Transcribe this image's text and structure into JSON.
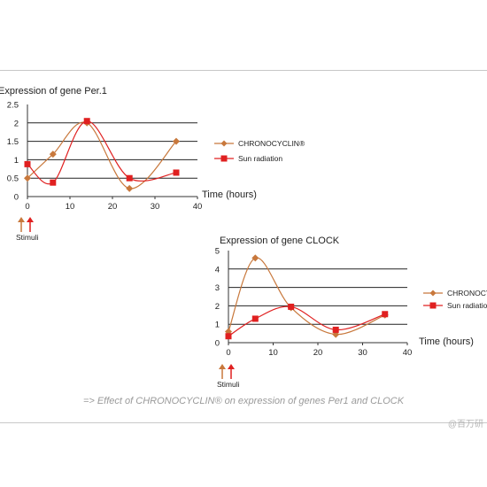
{
  "colors": {
    "chronocyclin": "#c8783c",
    "sun": "#e02020",
    "stimuli_arrow_1": "#c8783c",
    "stimuli_arrow_2": "#e02020",
    "grid": "#222222"
  },
  "caption": "=> Effect of CHRONOCYCLIN® on expression of genes Per1 and CLOCK",
  "watermark": "@百万研",
  "chart_data": [
    {
      "type": "line",
      "title": "Expression of gene Per.1",
      "xlabel": "Time (hours)",
      "ylabel": "",
      "xlim": [
        0,
        40
      ],
      "ylim": [
        0,
        2.5
      ],
      "xticks": [
        0,
        10,
        20,
        30,
        40
      ],
      "yticks": [
        0,
        0.5,
        1,
        1.5,
        2,
        2.5
      ],
      "grid": "horizontal",
      "legend": "right",
      "annotation": "Stimuli",
      "series": [
        {
          "name": "CHRONOCYCLIN®",
          "marker": "diamond",
          "x": [
            0,
            6,
            14,
            24,
            35
          ],
          "y": [
            0.5,
            1.15,
            2.0,
            0.22,
            1.5
          ]
        },
        {
          "name": "Sun radiation",
          "marker": "square",
          "x": [
            0,
            6,
            14,
            24,
            35
          ],
          "y": [
            0.88,
            0.38,
            2.05,
            0.5,
            0.65
          ]
        }
      ]
    },
    {
      "type": "line",
      "title": "Expression of gene CLOCK",
      "xlabel": "Time (hours)",
      "ylabel": "",
      "xlim": [
        0,
        40
      ],
      "ylim": [
        0,
        5
      ],
      "xticks": [
        0,
        10,
        20,
        30,
        40
      ],
      "yticks": [
        0,
        1,
        2,
        3,
        4,
        5
      ],
      "grid": "horizontal",
      "legend": "right",
      "annotation": "Stimuli",
      "series": [
        {
          "name": "CHRONOCYCLIN®",
          "marker": "diamond",
          "x": [
            0,
            6,
            14,
            24,
            35
          ],
          "y": [
            0.6,
            4.6,
            1.9,
            0.45,
            1.5
          ]
        },
        {
          "name": "Sun radiation",
          "marker": "square",
          "x": [
            0,
            6,
            14,
            24,
            35
          ],
          "y": [
            0.35,
            1.3,
            1.95,
            0.7,
            1.55
          ]
        }
      ]
    }
  ]
}
